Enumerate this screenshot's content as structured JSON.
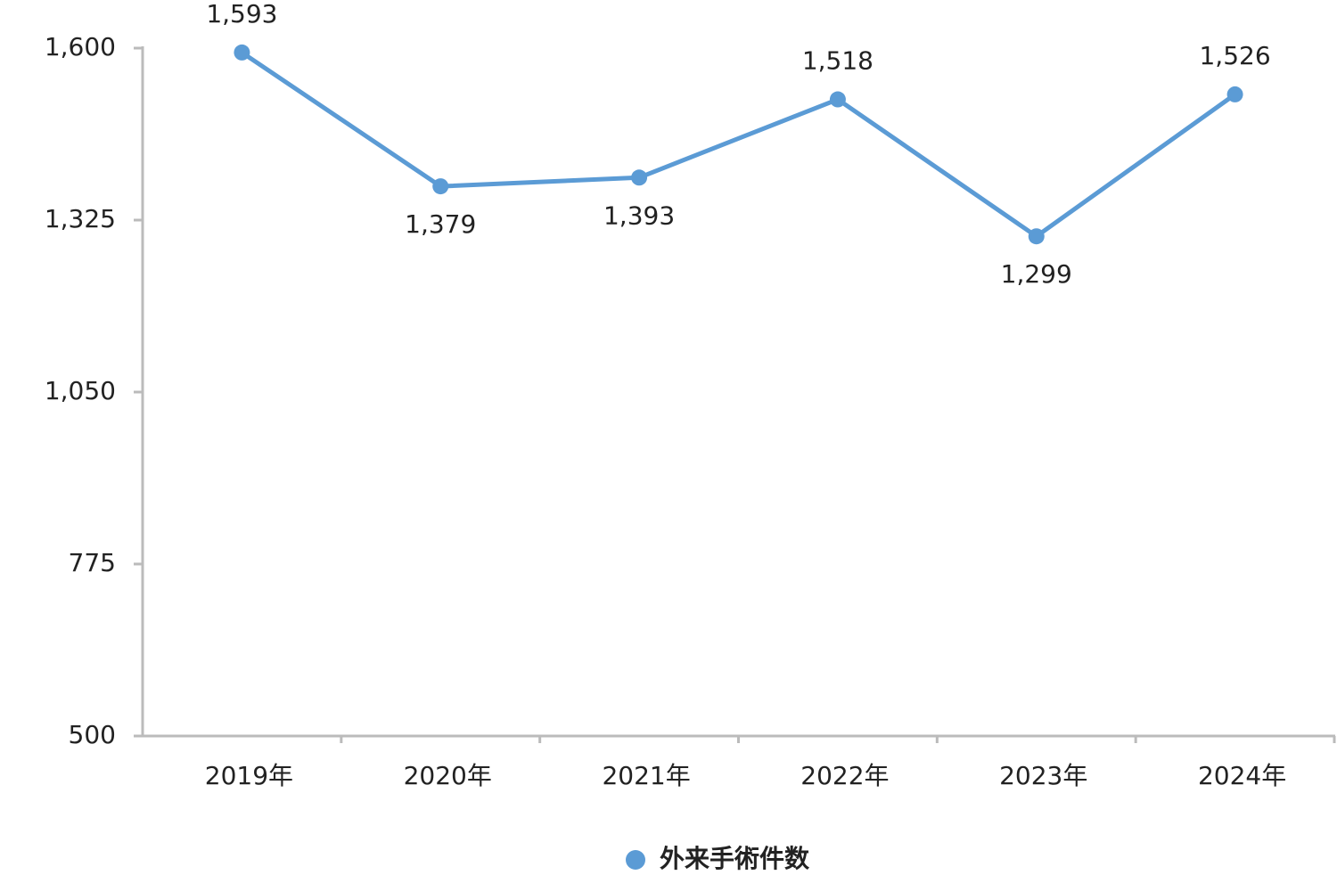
{
  "chart_data": {
    "type": "line",
    "categories": [
      "2019年",
      "2020年",
      "2021年",
      "2022年",
      "2023年",
      "2024年"
    ],
    "series": [
      {
        "name": "外来手術件数",
        "color": "#5b9bd5",
        "values": [
          1593,
          1379,
          1393,
          1518,
          1299,
          1526
        ],
        "value_labels": [
          "1,593",
          "1,379",
          "1,393",
          "1,518",
          "1,299",
          "1,526"
        ]
      }
    ],
    "ylim": [
      500,
      1600
    ],
    "yticks": [
      {
        "value": 500,
        "label": "500"
      },
      {
        "value": 775,
        "label": "775"
      },
      {
        "value": 1050,
        "label": "1,050"
      },
      {
        "value": 1325,
        "label": "1,325"
      },
      {
        "value": 1600,
        "label": "1,600"
      }
    ],
    "grid": false
  }
}
